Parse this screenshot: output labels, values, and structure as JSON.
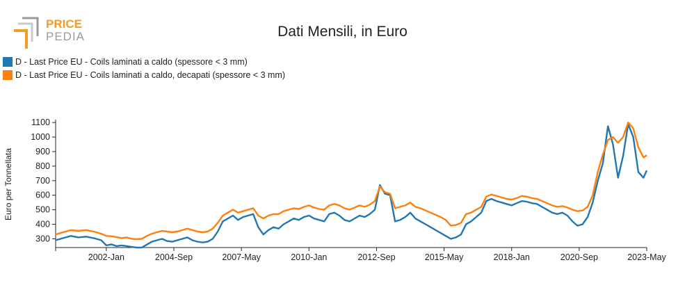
{
  "logo": {
    "line1": "PRICE",
    "line2": "PEDIA"
  },
  "colors": {
    "series1": "#1f77b4",
    "series2": "#ff7f0e",
    "logo_orange": "#f39c28",
    "logo_gray": "#9a9a9a"
  },
  "chart_data": {
    "type": "line",
    "title": "Dati Mensili, in Euro",
    "xlabel": "",
    "ylabel": "Euro per Tonnellata",
    "ylim": [
      240,
      1120
    ],
    "yticks": [
      300,
      400,
      500,
      600,
      700,
      800,
      900,
      1000,
      1100
    ],
    "xlim": [
      2000.0,
      2023.333
    ],
    "xticks": [
      {
        "label": "2002-Jan",
        "t": 2002.0
      },
      {
        "label": "2004-Sep",
        "t": 2004.667
      },
      {
        "label": "2007-May",
        "t": 2007.333
      },
      {
        "label": "2010-Jan",
        "t": 2010.0
      },
      {
        "label": "2012-Sep",
        "t": 2012.667
      },
      {
        "label": "2015-May",
        "t": 2015.333
      },
      {
        "label": "2018-Jan",
        "t": 2018.0
      },
      {
        "label": "2020-Sep",
        "t": 2020.667
      },
      {
        "label": "2023-May",
        "t": 2023.333
      }
    ],
    "series": [
      {
        "name": "D - Last Price EU - Coils laminati a caldo (spessore < 3 mm)",
        "points": [
          [
            2000.0,
            290
          ],
          [
            2000.3,
            305
          ],
          [
            2000.6,
            320
          ],
          [
            2000.9,
            310
          ],
          [
            2001.2,
            315
          ],
          [
            2001.5,
            305
          ],
          [
            2001.8,
            290
          ],
          [
            2002.0,
            255
          ],
          [
            2002.2,
            262
          ],
          [
            2002.4,
            250
          ],
          [
            2002.6,
            255
          ],
          [
            2002.8,
            250
          ],
          [
            2003.0,
            245
          ],
          [
            2003.2,
            240
          ],
          [
            2003.4,
            240
          ],
          [
            2003.6,
            260
          ],
          [
            2003.8,
            280
          ],
          [
            2004.0,
            290
          ],
          [
            2004.2,
            300
          ],
          [
            2004.4,
            285
          ],
          [
            2004.6,
            280
          ],
          [
            2004.8,
            290
          ],
          [
            2005.0,
            300
          ],
          [
            2005.2,
            310
          ],
          [
            2005.4,
            290
          ],
          [
            2005.6,
            280
          ],
          [
            2005.8,
            275
          ],
          [
            2006.0,
            280
          ],
          [
            2006.2,
            300
          ],
          [
            2006.4,
            350
          ],
          [
            2006.6,
            420
          ],
          [
            2006.8,
            440
          ],
          [
            2007.0,
            460
          ],
          [
            2007.2,
            430
          ],
          [
            2007.4,
            450
          ],
          [
            2007.6,
            460
          ],
          [
            2007.8,
            470
          ],
          [
            2008.0,
            380
          ],
          [
            2008.2,
            330
          ],
          [
            2008.4,
            360
          ],
          [
            2008.6,
            380
          ],
          [
            2008.8,
            370
          ],
          [
            2009.0,
            400
          ],
          [
            2009.2,
            420
          ],
          [
            2009.4,
            440
          ],
          [
            2009.6,
            430
          ],
          [
            2009.8,
            450
          ],
          [
            2010.0,
            460
          ],
          [
            2010.2,
            440
          ],
          [
            2010.4,
            430
          ],
          [
            2010.6,
            420
          ],
          [
            2010.8,
            470
          ],
          [
            2011.0,
            480
          ],
          [
            2011.2,
            460
          ],
          [
            2011.4,
            430
          ],
          [
            2011.6,
            420
          ],
          [
            2011.8,
            440
          ],
          [
            2012.0,
            460
          ],
          [
            2012.2,
            450
          ],
          [
            2012.4,
            470
          ],
          [
            2012.6,
            500
          ],
          [
            2012.8,
            670
          ],
          [
            2013.0,
            610
          ],
          [
            2013.2,
            600
          ],
          [
            2013.4,
            420
          ],
          [
            2013.6,
            430
          ],
          [
            2013.8,
            450
          ],
          [
            2014.0,
            480
          ],
          [
            2014.2,
            440
          ],
          [
            2014.4,
            420
          ],
          [
            2014.6,
            400
          ],
          [
            2014.8,
            380
          ],
          [
            2015.0,
            360
          ],
          [
            2015.2,
            340
          ],
          [
            2015.4,
            320
          ],
          [
            2015.6,
            300
          ],
          [
            2015.8,
            310
          ],
          [
            2016.0,
            330
          ],
          [
            2016.2,
            400
          ],
          [
            2016.4,
            420
          ],
          [
            2016.6,
            450
          ],
          [
            2016.8,
            480
          ],
          [
            2017.0,
            560
          ],
          [
            2017.2,
            575
          ],
          [
            2017.4,
            560
          ],
          [
            2017.6,
            550
          ],
          [
            2017.8,
            540
          ],
          [
            2018.0,
            530
          ],
          [
            2018.2,
            545
          ],
          [
            2018.4,
            560
          ],
          [
            2018.6,
            555
          ],
          [
            2018.8,
            545
          ],
          [
            2019.0,
            540
          ],
          [
            2019.2,
            520
          ],
          [
            2019.4,
            500
          ],
          [
            2019.6,
            480
          ],
          [
            2019.8,
            470
          ],
          [
            2020.0,
            480
          ],
          [
            2020.2,
            460
          ],
          [
            2020.4,
            420
          ],
          [
            2020.6,
            390
          ],
          [
            2020.8,
            400
          ],
          [
            2021.0,
            450
          ],
          [
            2021.2,
            550
          ],
          [
            2021.4,
            700
          ],
          [
            2021.6,
            820
          ],
          [
            2021.8,
            1075
          ],
          [
            2022.0,
            950
          ],
          [
            2022.2,
            720
          ],
          [
            2022.4,
            870
          ],
          [
            2022.6,
            1090
          ],
          [
            2022.8,
            1000
          ],
          [
            2023.0,
            760
          ],
          [
            2023.2,
            720
          ],
          [
            2023.333,
            770
          ]
        ]
      },
      {
        "name": "D - Last Price EU - Coils laminati a caldo, decapati (spessore < 3 mm)",
        "points": [
          [
            2000.0,
            330
          ],
          [
            2000.3,
            345
          ],
          [
            2000.6,
            360
          ],
          [
            2000.9,
            355
          ],
          [
            2001.2,
            360
          ],
          [
            2001.5,
            350
          ],
          [
            2001.8,
            335
          ],
          [
            2002.0,
            320
          ],
          [
            2002.2,
            318
          ],
          [
            2002.4,
            312
          ],
          [
            2002.6,
            305
          ],
          [
            2002.8,
            310
          ],
          [
            2003.0,
            300
          ],
          [
            2003.2,
            298
          ],
          [
            2003.4,
            300
          ],
          [
            2003.6,
            320
          ],
          [
            2003.8,
            335
          ],
          [
            2004.0,
            345
          ],
          [
            2004.2,
            355
          ],
          [
            2004.4,
            350
          ],
          [
            2004.6,
            345
          ],
          [
            2004.8,
            350
          ],
          [
            2005.0,
            360
          ],
          [
            2005.2,
            370
          ],
          [
            2005.4,
            360
          ],
          [
            2005.6,
            350
          ],
          [
            2005.8,
            345
          ],
          [
            2006.0,
            350
          ],
          [
            2006.2,
            370
          ],
          [
            2006.4,
            410
          ],
          [
            2006.6,
            460
          ],
          [
            2006.8,
            480
          ],
          [
            2007.0,
            500
          ],
          [
            2007.2,
            480
          ],
          [
            2007.4,
            490
          ],
          [
            2007.6,
            500
          ],
          [
            2007.8,
            510
          ],
          [
            2008.0,
            460
          ],
          [
            2008.2,
            440
          ],
          [
            2008.4,
            460
          ],
          [
            2008.6,
            470
          ],
          [
            2008.8,
            470
          ],
          [
            2009.0,
            490
          ],
          [
            2009.2,
            500
          ],
          [
            2009.4,
            510
          ],
          [
            2009.6,
            505
          ],
          [
            2009.8,
            520
          ],
          [
            2010.0,
            530
          ],
          [
            2010.2,
            515
          ],
          [
            2010.4,
            505
          ],
          [
            2010.6,
            500
          ],
          [
            2010.8,
            530
          ],
          [
            2011.0,
            540
          ],
          [
            2011.2,
            530
          ],
          [
            2011.4,
            510
          ],
          [
            2011.6,
            500
          ],
          [
            2011.8,
            515
          ],
          [
            2012.0,
            530
          ],
          [
            2012.2,
            520
          ],
          [
            2012.4,
            535
          ],
          [
            2012.6,
            560
          ],
          [
            2012.8,
            660
          ],
          [
            2013.0,
            620
          ],
          [
            2013.2,
            610
          ],
          [
            2013.4,
            510
          ],
          [
            2013.6,
            520
          ],
          [
            2013.8,
            530
          ],
          [
            2014.0,
            550
          ],
          [
            2014.2,
            520
          ],
          [
            2014.4,
            510
          ],
          [
            2014.6,
            495
          ],
          [
            2014.8,
            480
          ],
          [
            2015.0,
            465
          ],
          [
            2015.2,
            450
          ],
          [
            2015.4,
            430
          ],
          [
            2015.6,
            390
          ],
          [
            2015.8,
            395
          ],
          [
            2016.0,
            410
          ],
          [
            2016.2,
            470
          ],
          [
            2016.4,
            480
          ],
          [
            2016.6,
            500
          ],
          [
            2016.8,
            520
          ],
          [
            2017.0,
            590
          ],
          [
            2017.2,
            605
          ],
          [
            2017.4,
            595
          ],
          [
            2017.6,
            585
          ],
          [
            2017.8,
            575
          ],
          [
            2018.0,
            570
          ],
          [
            2018.2,
            580
          ],
          [
            2018.4,
            595
          ],
          [
            2018.6,
            590
          ],
          [
            2018.8,
            580
          ],
          [
            2019.0,
            575
          ],
          [
            2019.2,
            560
          ],
          [
            2019.4,
            545
          ],
          [
            2019.6,
            530
          ],
          [
            2019.8,
            520
          ],
          [
            2020.0,
            525
          ],
          [
            2020.2,
            515
          ],
          [
            2020.4,
            500
          ],
          [
            2020.6,
            490
          ],
          [
            2020.8,
            495
          ],
          [
            2021.0,
            520
          ],
          [
            2021.2,
            600
          ],
          [
            2021.4,
            760
          ],
          [
            2021.6,
            880
          ],
          [
            2021.8,
            980
          ],
          [
            2022.0,
            1000
          ],
          [
            2022.2,
            960
          ],
          [
            2022.4,
            1000
          ],
          [
            2022.6,
            1100
          ],
          [
            2022.8,
            1060
          ],
          [
            2023.0,
            930
          ],
          [
            2023.2,
            860
          ],
          [
            2023.333,
            875
          ]
        ]
      }
    ]
  }
}
